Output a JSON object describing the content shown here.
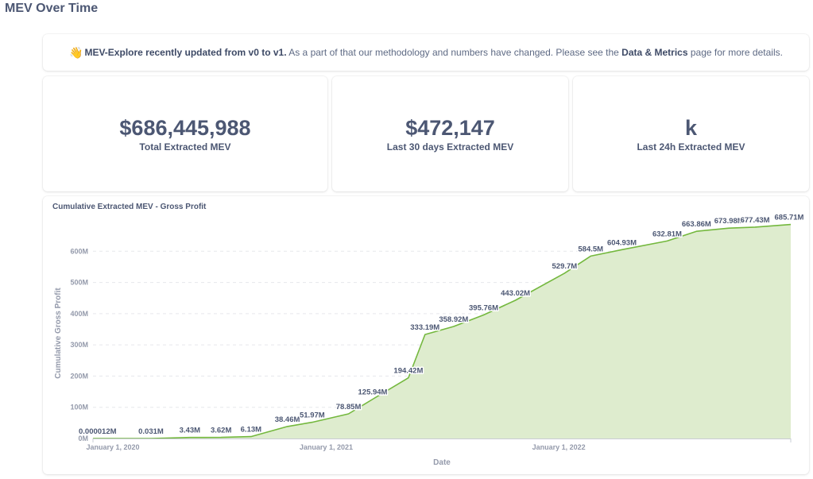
{
  "page": {
    "title": "MEV Over Time"
  },
  "notice": {
    "icon": "waving-hand-icon",
    "icon_glyph": "👋",
    "bold_text": "MEV-Explore recently updated from v0 to v1.",
    "text_before_link": " As a part of that our methodology and numbers have changed. Please see the ",
    "link_text": "Data & Metrics",
    "text_after_link": " page for more details."
  },
  "stats": [
    {
      "value": "$686,445,988",
      "label": "Total Extracted MEV"
    },
    {
      "value": "$472,147",
      "label": "Last 30 days Extracted MEV"
    },
    {
      "value": "k",
      "label": "Last 24h Extracted MEV"
    }
  ],
  "colors": {
    "line": "#74b83e",
    "area": "#deecce",
    "text": "#4c5773",
    "muted": "#949aab"
  },
  "chart_data": {
    "type": "area",
    "title": "Cumulative Extracted MEV - Gross Profit",
    "xlabel": "Date",
    "ylabel": "Cumulative Gross Profit",
    "ylim": [
      0,
      700
    ],
    "y_unit": "M",
    "yticks": [
      0,
      100,
      200,
      300,
      400,
      500,
      600
    ],
    "ytick_labels": [
      "0M",
      "100M",
      "200M",
      "300M",
      "400M",
      "500M",
      "600M"
    ],
    "xlim": [
      "2020-01-01",
      "2022-12-31"
    ],
    "xticks": [
      "2020-01-01",
      "2021-01-01",
      "2022-01-01"
    ],
    "xtick_labels": [
      "January 1, 2020",
      "January 1, 2021",
      "January 1, 2022"
    ],
    "grid": true,
    "legend": "none",
    "series": [
      {
        "name": "Cumulative Gross Profit",
        "points": [
          {
            "x": "2020-01-01",
            "y": 1.2e-05,
            "label": "0.000012M"
          },
          {
            "x": "2020-04-01",
            "y": 0.031,
            "label": "0.031M"
          },
          {
            "x": "2020-06-01",
            "y": 3.43,
            "label": "3.43M"
          },
          {
            "x": "2020-07-20",
            "y": 3.62,
            "label": "3.62M"
          },
          {
            "x": "2020-09-05",
            "y": 6.13,
            "label": "6.13M"
          },
          {
            "x": "2020-11-01",
            "y": 38.46,
            "label": "38.46M"
          },
          {
            "x": "2020-12-10",
            "y": 51.97,
            "label": "51.97M"
          },
          {
            "x": "2021-02-05",
            "y": 78.85,
            "label": "78.85M"
          },
          {
            "x": "2021-03-15",
            "y": 125.94,
            "label": "125.94M"
          },
          {
            "x": "2021-05-10",
            "y": 194.42,
            "label": "194.42M"
          },
          {
            "x": "2021-06-05",
            "y": 333.19,
            "label": "333.19M"
          },
          {
            "x": "2021-07-20",
            "y": 358.92,
            "label": "358.92M"
          },
          {
            "x": "2021-09-05",
            "y": 395.76,
            "label": "395.76M"
          },
          {
            "x": "2021-10-25",
            "y": 443.02,
            "label": "443.02M"
          },
          {
            "x": "2022-01-10",
            "y": 529.7,
            "label": "529.7M"
          },
          {
            "x": "2022-02-20",
            "y": 584.5,
            "label": "584.5M"
          },
          {
            "x": "2022-04-10",
            "y": 604.93,
            "label": "604.93M"
          },
          {
            "x": "2022-06-20",
            "y": 632.81,
            "label": "632.81M"
          },
          {
            "x": "2022-08-05",
            "y": 663.86,
            "label": "663.86M"
          },
          {
            "x": "2022-09-25",
            "y": 673.98,
            "label": "673.98M"
          },
          {
            "x": "2022-11-05",
            "y": 677.43,
            "label": "677.43M"
          },
          {
            "x": "2022-12-31",
            "y": 685.71,
            "label": "685.71M"
          }
        ]
      }
    ]
  }
}
